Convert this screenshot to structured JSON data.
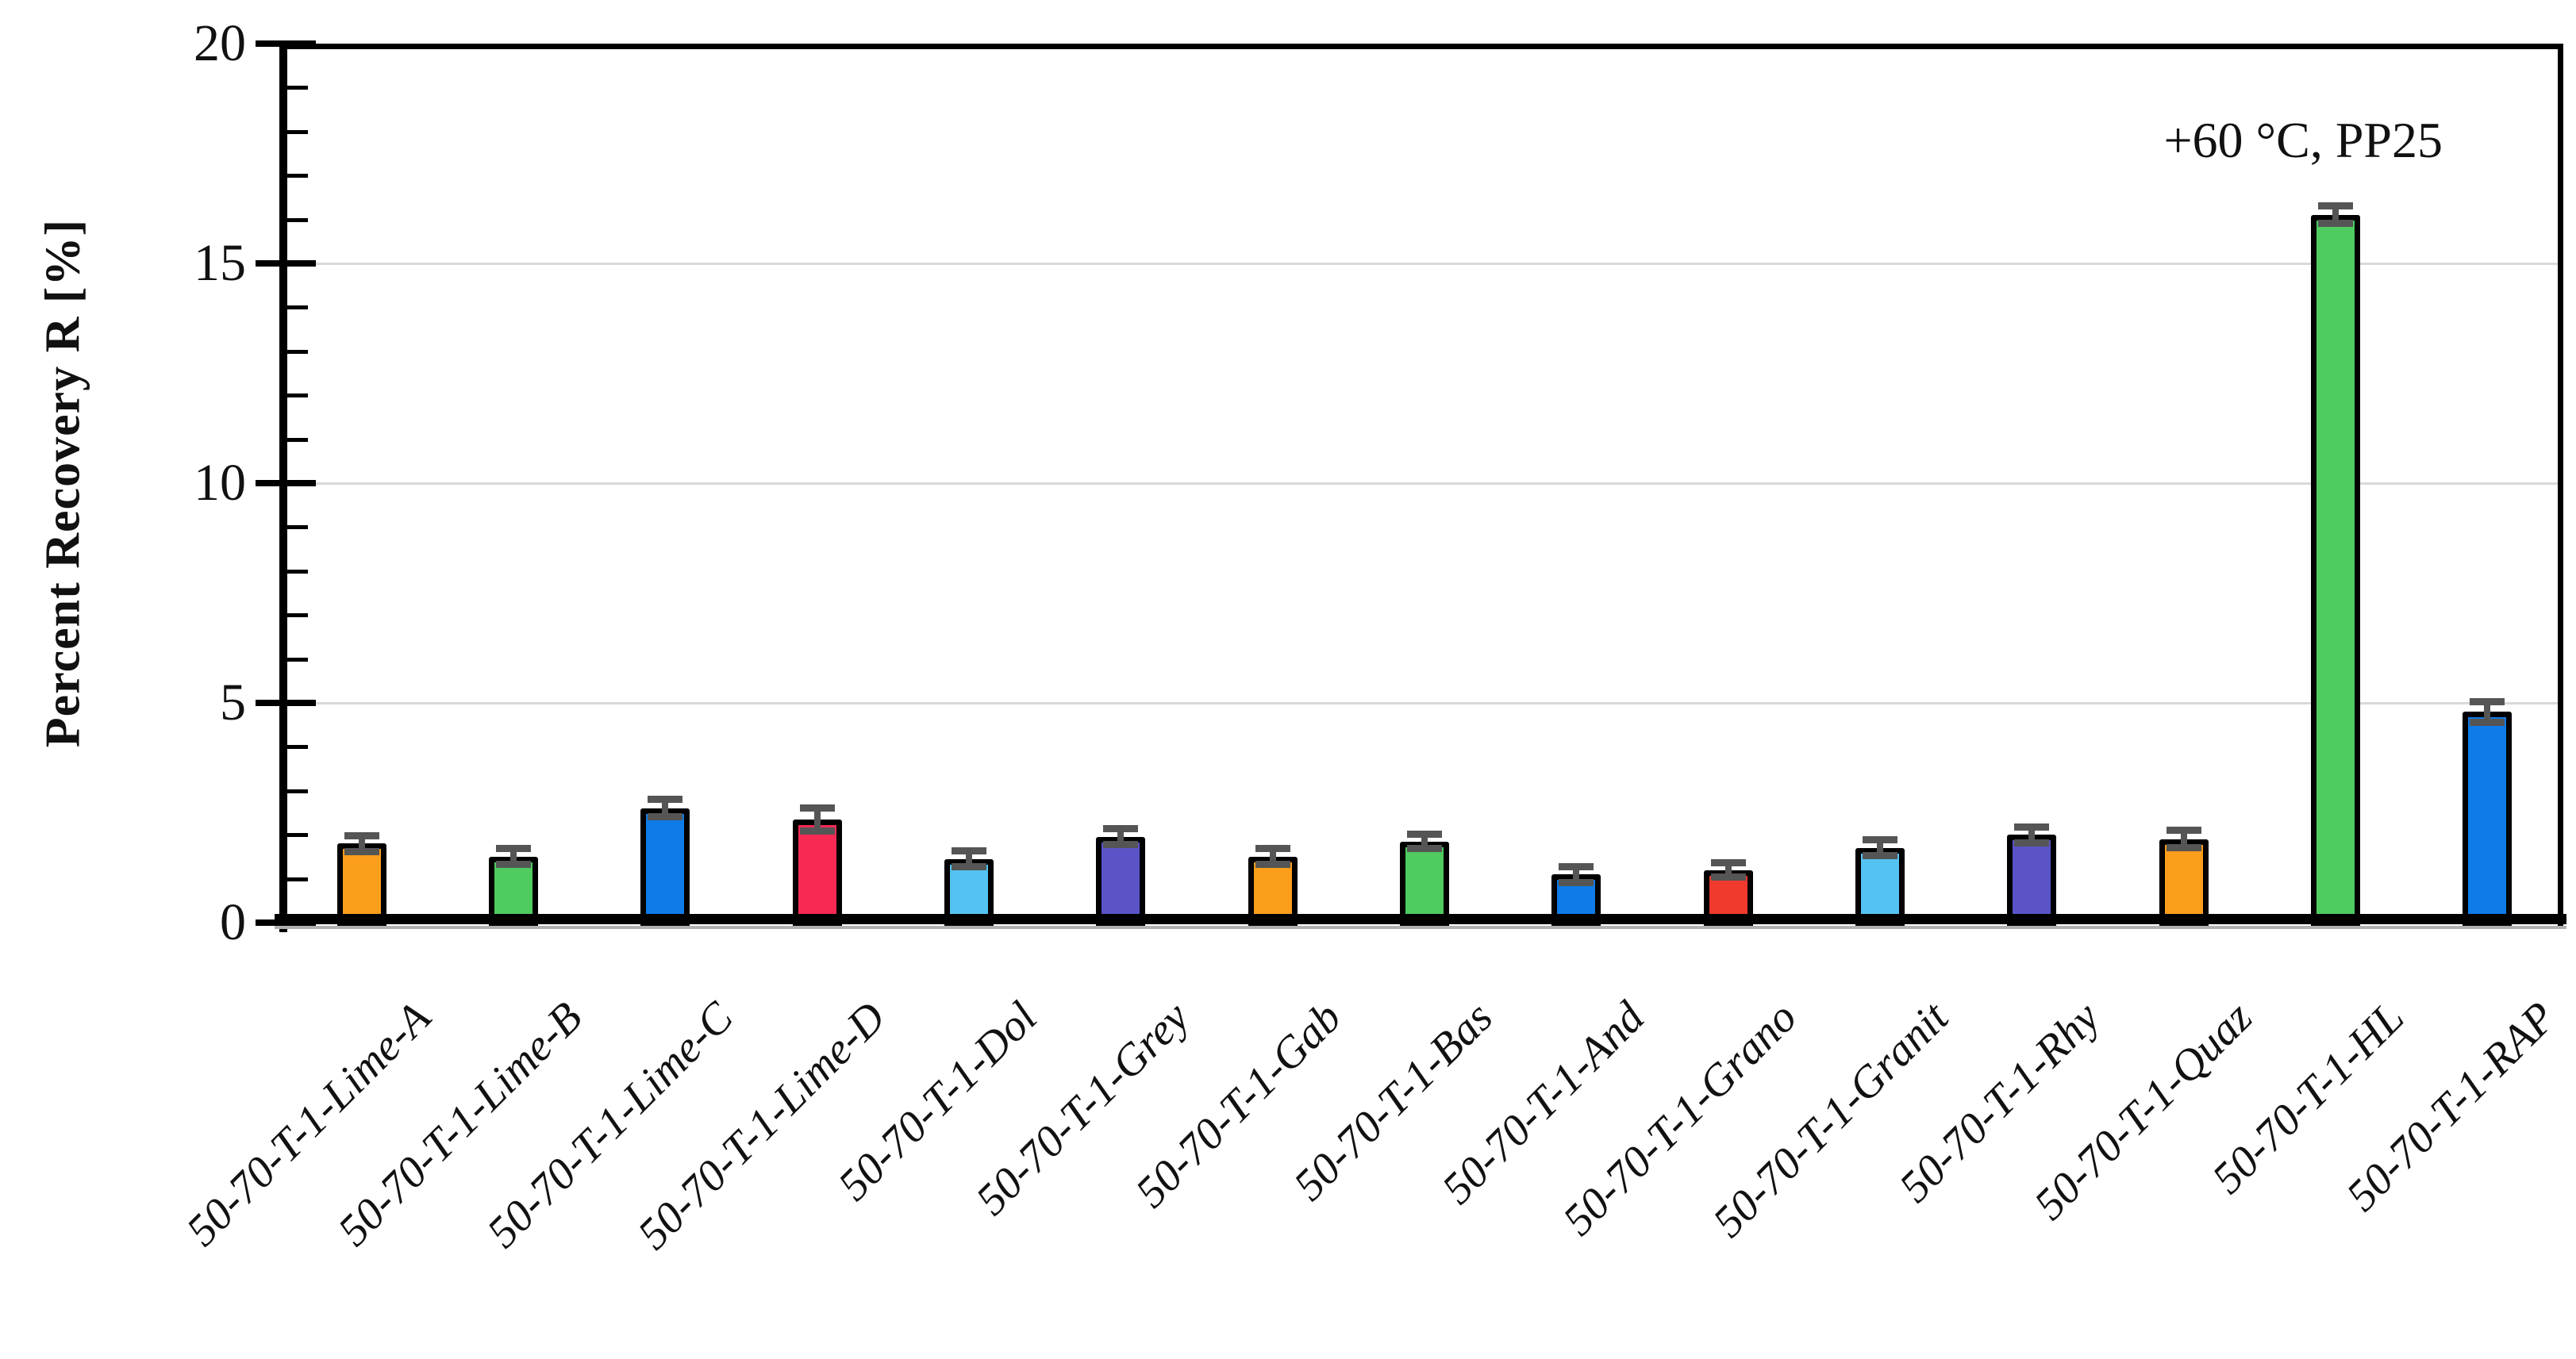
{
  "page": {
    "background": "#FFFFFF"
  },
  "chart_data": {
    "type": "bar",
    "title": "",
    "annotation": "+60 °C, PP25",
    "xlabel": "",
    "ylabel": "Percent Recovery R [%]",
    "ylim": [
      0,
      20
    ],
    "yticks": [
      0,
      5,
      10,
      15,
      20
    ],
    "ytick_labels": [
      "0",
      "5",
      "10",
      "15",
      "20"
    ],
    "minor_tick_step": 1,
    "gridlines_at": [
      5,
      10,
      15
    ],
    "grid_on": true,
    "legend_position": "none",
    "grid_color": "#D9D9D9",
    "bar_border_color": "#000000",
    "error_bar_color": "#555555",
    "categories": [
      "50-70-T-1-Lime-A",
      "50-70-T-1-Lime-B",
      "50-70-T-1-Lime-C",
      "50-70-T-1-Lime-D",
      "50-70-T-1-Dol",
      "50-70-T-1-Grey",
      "50-70-T-1-Gab",
      "50-70-T-1-Bas",
      "50-70-T-1-And",
      "50-70-T-1-Grano",
      "50-70-T-1-Granit",
      "50-70-T-1-Rhy",
      "50-70-T-1-Quaz",
      "50-70-T-1-HL",
      "50-70-T-1-RAP"
    ],
    "values": [
      1.8,
      1.5,
      2.6,
      2.35,
      1.45,
      1.95,
      1.5,
      1.85,
      1.1,
      1.2,
      1.7,
      2.0,
      1.9,
      16.1,
      4.8
    ],
    "errors": [
      0.1,
      0.1,
      0.12,
      0.18,
      0.1,
      0.1,
      0.1,
      0.08,
      0.1,
      0.08,
      0.1,
      0.1,
      0.12,
      0.12,
      0.15
    ],
    "bar_colors": [
      "#FA9E1C",
      "#4FCB5F",
      "#0E7BE8",
      "#F92953",
      "#55C3F1",
      "#5A54C8",
      "#FA9E1C",
      "#4FCB5F",
      "#0E7BE8",
      "#F03A2D",
      "#55C3F1",
      "#5A54C8",
      "#FA9E1C",
      "#4FCB5F",
      "#0E7BE8"
    ]
  }
}
